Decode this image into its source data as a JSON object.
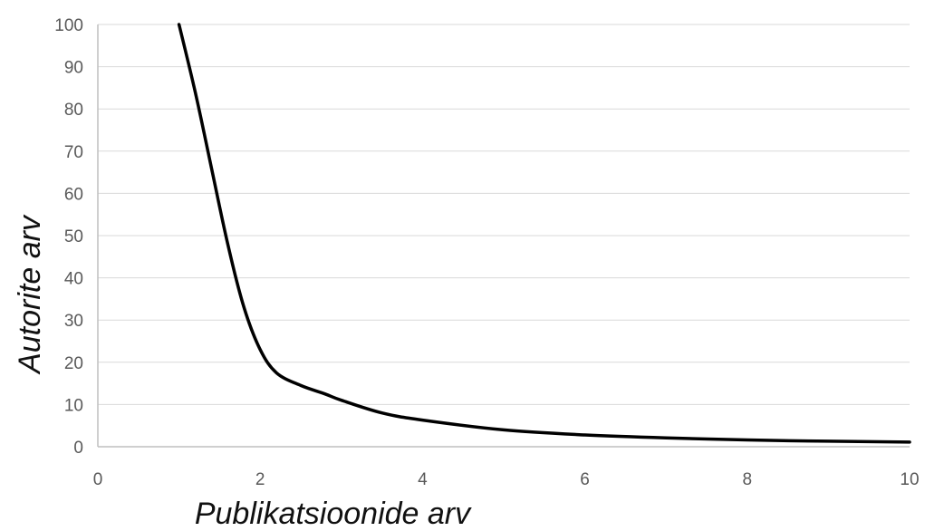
{
  "chart_data": {
    "type": "line",
    "xlabel": "Publikatsioonide arv",
    "ylabel": "Autorite arv",
    "xlim": [
      0,
      10
    ],
    "ylim": [
      0,
      100
    ],
    "x_ticks": [
      "0",
      "2",
      "4",
      "6",
      "8",
      "10"
    ],
    "y_ticks": [
      "0",
      "10",
      "20",
      "30",
      "40",
      "50",
      "60",
      "70",
      "80",
      "90",
      "100"
    ],
    "grid": true,
    "series": [
      {
        "color": "#000000",
        "x": [
          1.0,
          1.2,
          1.4,
          1.6,
          1.8,
          2.0,
          2.2,
          2.5,
          2.8,
          3.0,
          3.5,
          4.0,
          5.0,
          6.0,
          7.0,
          8.0,
          9.0,
          10.0
        ],
        "y": [
          100,
          84,
          66,
          48,
          33,
          23,
          17.5,
          14.5,
          12.5,
          11,
          8,
          6.3,
          4,
          2.8,
          2.1,
          1.6,
          1.3,
          1.1
        ]
      }
    ]
  }
}
